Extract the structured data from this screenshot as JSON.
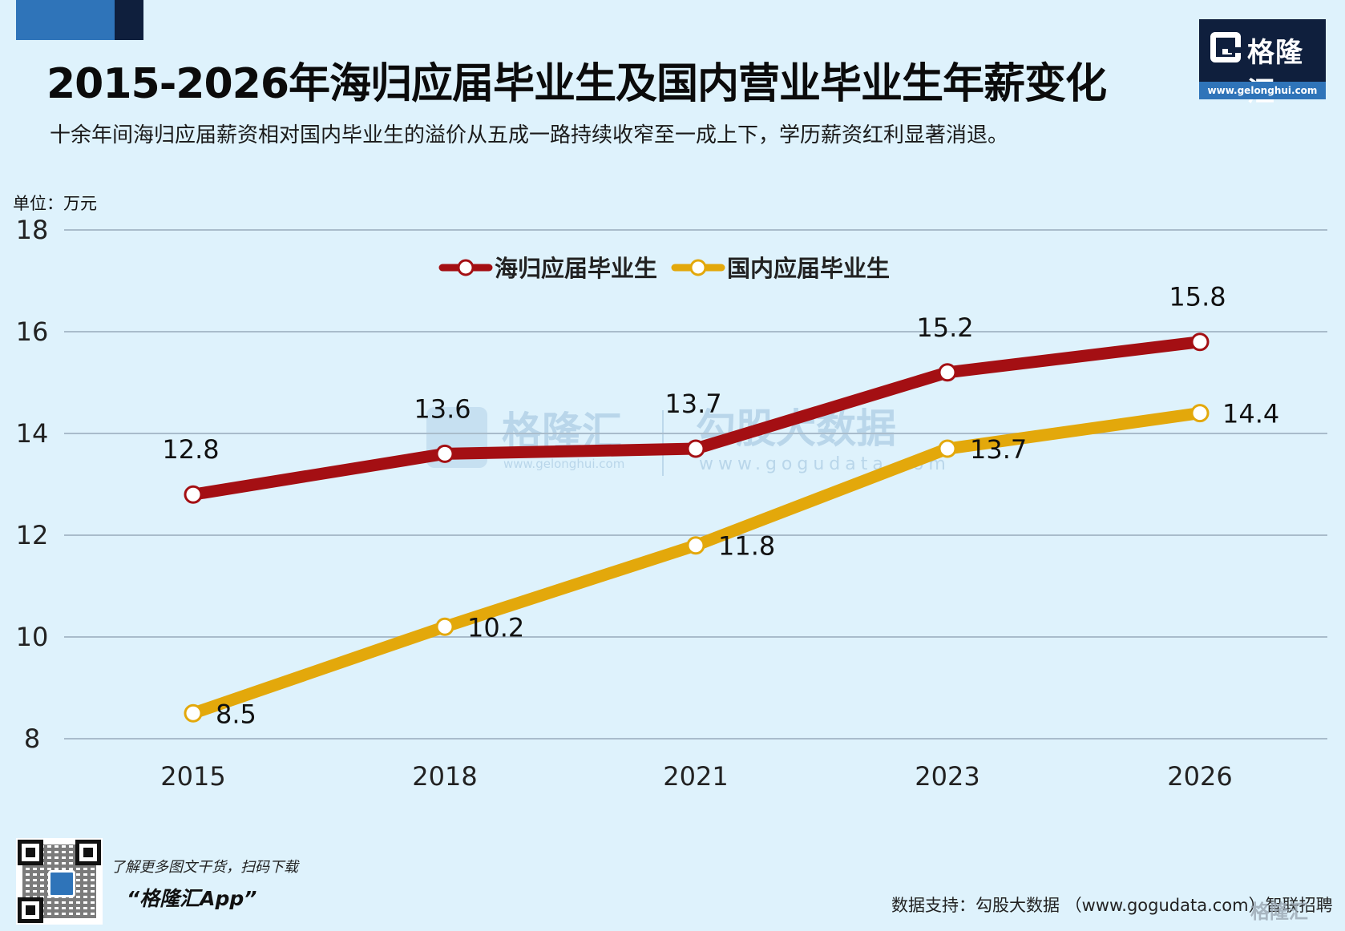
{
  "header": {
    "title": "2015-2026年海归应届毕业生及国内营业毕业生年薪变化",
    "subtitle": "十余年间海归应届薪资相对国内毕业生的溢价从五成一路持续收窄至一成上下，学历薪资红利显著消退。"
  },
  "logo": {
    "name": "格隆汇",
    "url": "www.gelonghui.com"
  },
  "watermarks": {
    "gelonghui_name": "格隆汇",
    "gelonghui_url": "www.gelonghui.com",
    "gogudata_name": "勾股大数据",
    "gogudata_url": "www.gogudata.com",
    "bottom": "格隆汇"
  },
  "footer": {
    "app_prompt": "了解更多图文干货，扫码下载",
    "app_name": "“格隆汇App”",
    "source": "数据支持：勾股大数据 （www.gogudata.com）智联招聘"
  },
  "chart_data": {
    "type": "line",
    "unit_label": "单位：万元",
    "categories": [
      "2015",
      "2018",
      "2021",
      "2023",
      "2026"
    ],
    "ylim": [
      8,
      18
    ],
    "yticks": [
      8,
      10,
      12,
      14,
      16,
      18
    ],
    "grid": true,
    "legend_position": "top-center",
    "series": [
      {
        "name": "海归应届毕业生",
        "color": "#a40f13",
        "values": [
          12.8,
          13.6,
          13.7,
          15.2,
          15.8
        ],
        "label_position": "above"
      },
      {
        "name": "国内应届毕业生",
        "color": "#e3a80b",
        "values": [
          8.5,
          10.2,
          11.8,
          13.7,
          14.4
        ],
        "label_position": "right"
      }
    ]
  }
}
